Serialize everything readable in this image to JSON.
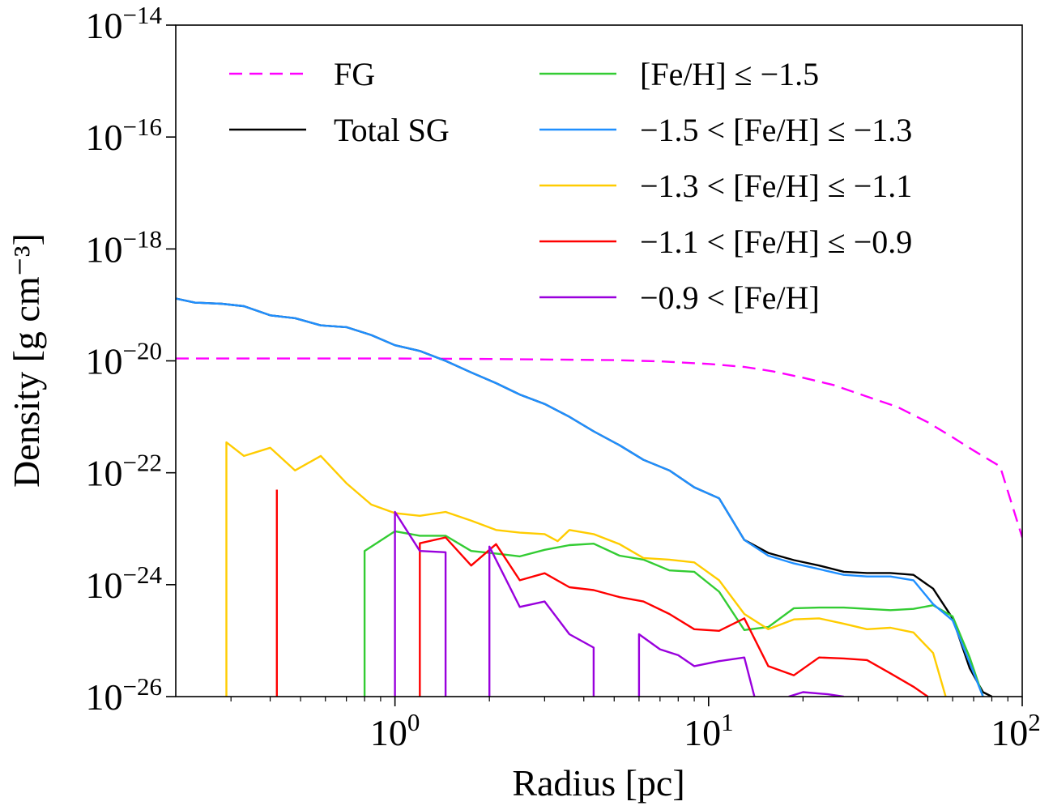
{
  "chart_data": {
    "type": "line",
    "xscale": "log",
    "yscale": "log",
    "xlim": [
      0.2,
      100
    ],
    "ylim": [
      1e-26,
      1e-14
    ],
    "xlabel": "Radius [pc]",
    "ylabel": "Density [g cm⁻³]",
    "xticks": [
      {
        "value": 1,
        "base": "10",
        "exp": "0"
      },
      {
        "value": 10,
        "base": "10",
        "exp": "1"
      },
      {
        "value": 100,
        "base": "10",
        "exp": "2"
      }
    ],
    "yticks": [
      {
        "value": 1e-14,
        "base": "10",
        "exp": "−14"
      },
      {
        "value": 1e-16,
        "base": "10",
        "exp": "−16"
      },
      {
        "value": 1e-18,
        "base": "10",
        "exp": "−18"
      },
      {
        "value": 1e-20,
        "base": "10",
        "exp": "−20"
      },
      {
        "value": 1e-22,
        "base": "10",
        "exp": "−22"
      },
      {
        "value": 1e-24,
        "base": "10",
        "exp": "−24"
      },
      {
        "value": 1e-26,
        "base": "10",
        "exp": "−26"
      }
    ],
    "grid": false,
    "legend_position": "top",
    "series": [
      {
        "name": "FG",
        "color": "#ff00ff",
        "dashed": true,
        "points": [
          [
            0.2,
            1.1e-20
          ],
          [
            0.5,
            1.1e-20
          ],
          [
            1,
            1.1e-20
          ],
          [
            2,
            1.08e-20
          ],
          [
            3,
            1.06e-20
          ],
          [
            5,
            1.03e-20
          ],
          [
            7,
            9.8e-21
          ],
          [
            10,
            8.8e-21
          ],
          [
            13,
            7.8e-21
          ],
          [
            16,
            6.5e-21
          ],
          [
            20,
            5e-21
          ],
          [
            25,
            3.7e-21
          ],
          [
            30,
            2.6e-21
          ],
          [
            40,
            1.5e-21
          ],
          [
            50,
            8e-22
          ],
          [
            60,
            4.3e-22
          ],
          [
            70,
            2.5e-22
          ],
          [
            85,
            1.3e-22
          ],
          [
            100,
            7e-24
          ]
        ]
      },
      {
        "name": "Total SG",
        "color": "#000000",
        "dashed": false,
        "points": [
          [
            0.2,
            1.3e-19
          ],
          [
            0.23,
            1.1e-19
          ],
          [
            0.28,
            1.05e-19
          ],
          [
            0.33,
            9.5e-20
          ],
          [
            0.4,
            6.5e-20
          ],
          [
            0.48,
            5.8e-20
          ],
          [
            0.58,
            4.3e-20
          ],
          [
            0.7,
            4e-20
          ],
          [
            0.84,
            2.9e-20
          ],
          [
            1,
            1.9e-20
          ],
          [
            1.2,
            1.5e-20
          ],
          [
            1.45,
            1e-20
          ],
          [
            1.75,
            6.2e-21
          ],
          [
            2.1,
            4e-21
          ],
          [
            2.5,
            2.5e-21
          ],
          [
            3,
            1.7e-21
          ],
          [
            3.6,
            1e-21
          ],
          [
            4.3,
            5.5e-22
          ],
          [
            5.2,
            3.1e-22
          ],
          [
            6.2,
            1.7e-22
          ],
          [
            7.5,
            1.1e-22
          ],
          [
            9,
            5.5e-23
          ],
          [
            10.8,
            3.5e-23
          ],
          [
            13,
            6.3e-24
          ],
          [
            15.5,
            3.7e-24
          ],
          [
            18.7,
            2.75e-24
          ],
          [
            22.5,
            2.2e-24
          ],
          [
            27,
            1.7e-24
          ],
          [
            32,
            1.62e-24
          ],
          [
            38,
            1.62e-24
          ],
          [
            45,
            1.5e-24
          ],
          [
            52,
            8.5e-25
          ],
          [
            60,
            2.5e-25
          ],
          [
            68,
            3.2e-26
          ],
          [
            75,
            1.2e-26
          ],
          [
            80,
            1e-26
          ]
        ]
      },
      {
        "name": "[Fe/H] ≤ −1.5",
        "color": "#33cc33",
        "dashed": false,
        "points": [
          [
            0.8,
            1e-26
          ],
          [
            0.8,
            4e-24
          ],
          [
            1,
            9e-24
          ],
          [
            1.2,
            7.5e-24
          ],
          [
            1.45,
            7.5e-24
          ],
          [
            1.75,
            4e-24
          ],
          [
            2.1,
            3.6e-24
          ],
          [
            2.5,
            3.2e-24
          ],
          [
            3,
            4.2e-24
          ],
          [
            3.6,
            5.1e-24
          ],
          [
            4.3,
            5.4e-24
          ],
          [
            5.2,
            3.3e-24
          ],
          [
            6.2,
            2.8e-24
          ],
          [
            7.5,
            1.8e-24
          ],
          [
            9,
            1.7e-24
          ],
          [
            10.8,
            7.5e-25
          ],
          [
            13,
            1.55e-25
          ],
          [
            15.5,
            1.75e-25
          ],
          [
            18.7,
            3.8e-25
          ],
          [
            22.5,
            3.9e-25
          ],
          [
            27,
            3.9e-25
          ],
          [
            32,
            3.7e-25
          ],
          [
            38,
            3.5e-25
          ],
          [
            45,
            3.7e-25
          ],
          [
            52,
            4.3e-25
          ],
          [
            60,
            2.7e-25
          ],
          [
            68,
            5e-26
          ],
          [
            75,
            1e-26
          ]
        ]
      },
      {
        "name": "−1.5 < [Fe/H] ≤ −1.3",
        "color": "#1f8fff",
        "dashed": false,
        "points": [
          [
            0.2,
            1.3e-19
          ],
          [
            0.23,
            1.1e-19
          ],
          [
            0.28,
            1.05e-19
          ],
          [
            0.33,
            9.5e-20
          ],
          [
            0.4,
            6.5e-20
          ],
          [
            0.48,
            5.8e-20
          ],
          [
            0.58,
            4.3e-20
          ],
          [
            0.7,
            4e-20
          ],
          [
            0.84,
            2.9e-20
          ],
          [
            1,
            1.9e-20
          ],
          [
            1.2,
            1.5e-20
          ],
          [
            1.45,
            1e-20
          ],
          [
            1.75,
            6.2e-21
          ],
          [
            2.1,
            4e-21
          ],
          [
            2.5,
            2.5e-21
          ],
          [
            3,
            1.7e-21
          ],
          [
            3.6,
            1e-21
          ],
          [
            4.3,
            5.5e-22
          ],
          [
            5.2,
            3.1e-22
          ],
          [
            6.2,
            1.7e-22
          ],
          [
            7.5,
            1.1e-22
          ],
          [
            9,
            5.5e-23
          ],
          [
            10.8,
            3.5e-23
          ],
          [
            13,
            6.3e-24
          ],
          [
            15.5,
            3.3e-24
          ],
          [
            18.7,
            2.4e-24
          ],
          [
            22.5,
            1.9e-24
          ],
          [
            27,
            1.5e-24
          ],
          [
            32,
            1.4e-24
          ],
          [
            38,
            1.4e-24
          ],
          [
            45,
            1.2e-24
          ],
          [
            52,
            4.5e-25
          ],
          [
            60,
            2.3e-25
          ],
          [
            68,
            4e-26
          ],
          [
            75,
            1e-26
          ]
        ]
      },
      {
        "name": "−1.3 < [Fe/H] ≤ −1.1",
        "color": "#ffcc00",
        "dashed": false,
        "points": [
          [
            0.29,
            1e-26
          ],
          [
            0.29,
            3.5e-22
          ],
          [
            0.33,
            2e-22
          ],
          [
            0.4,
            2.8e-22
          ],
          [
            0.48,
            1.1e-22
          ],
          [
            0.58,
            2e-22
          ],
          [
            0.7,
            6.5e-23
          ],
          [
            0.84,
            2.7e-23
          ],
          [
            1,
            1.9e-23
          ],
          [
            1.2,
            1.7e-23
          ],
          [
            1.45,
            2e-23
          ],
          [
            1.75,
            1.4e-23
          ],
          [
            2.1,
            9.5e-24
          ],
          [
            2.5,
            8.5e-24
          ],
          [
            3,
            8e-24
          ],
          [
            3.3,
            6e-24
          ],
          [
            3.6,
            9.5e-24
          ],
          [
            4.3,
            8e-24
          ],
          [
            5.2,
            5.3e-24
          ],
          [
            6.2,
            3e-24
          ],
          [
            7.5,
            2.8e-24
          ],
          [
            9,
            2.5e-24
          ],
          [
            10.8,
            1.2e-24
          ],
          [
            13,
            3e-25
          ],
          [
            15.5,
            1.6e-25
          ],
          [
            18.7,
            2.4e-25
          ],
          [
            22.5,
            2.5e-25
          ],
          [
            27,
            2e-25
          ],
          [
            32,
            1.6e-25
          ],
          [
            38,
            1.7e-25
          ],
          [
            45,
            1.4e-25
          ],
          [
            52,
            6e-26
          ],
          [
            57,
            1e-26
          ]
        ]
      },
      {
        "name": "−1.1 < [Fe/H] ≤ −0.9",
        "color": "#ff0000",
        "dashed": false,
        "segments": [
          [
            [
              0.42,
              1e-26
            ],
            [
              0.42,
              5e-23
            ]
          ],
          [
            [
              1.2,
              1e-26
            ],
            [
              1.2,
              5.5e-24
            ],
            [
              1.45,
              7e-24
            ],
            [
              1.75,
              2.2e-24
            ],
            [
              2.1,
              5.3e-24
            ],
            [
              2.5,
              1.2e-24
            ],
            [
              3,
              1.6e-24
            ],
            [
              3.6,
              9e-25
            ],
            [
              4.3,
              8e-25
            ],
            [
              5.2,
              6e-25
            ],
            [
              6.2,
              5e-25
            ],
            [
              7.5,
              3e-25
            ],
            [
              9,
              1.6e-25
            ],
            [
              10.8,
              1.5e-25
            ],
            [
              13,
              2.5e-25
            ],
            [
              15.5,
              3.5e-26
            ],
            [
              18.7,
              2.4e-26
            ],
            [
              22.5,
              5e-26
            ],
            [
              27,
              4.8e-26
            ],
            [
              32,
              4.5e-26
            ],
            [
              38,
              2.6e-26
            ],
            [
              45,
              1.5e-26
            ],
            [
              50,
              1e-26
            ]
          ]
        ]
      },
      {
        "name": "−0.9 < [Fe/H]",
        "color": "#9900dd",
        "dashed": false,
        "segments": [
          [
            [
              1,
              1e-26
            ],
            [
              1,
              2e-23
            ],
            [
              1.2,
              4e-24
            ],
            [
              1.45,
              3.8e-24
            ],
            [
              1.45,
              1e-26
            ]
          ],
          [
            [
              2,
              1e-26
            ],
            [
              2,
              4.8e-24
            ],
            [
              2.5,
              4e-25
            ],
            [
              3,
              5e-25
            ],
            [
              3.6,
              1.3e-25
            ],
            [
              4.3,
              7.5e-26
            ],
            [
              4.3,
              1e-26
            ]
          ],
          [
            [
              6,
              1e-26
            ],
            [
              6,
              1.3e-25
            ],
            [
              7,
              7e-26
            ],
            [
              8,
              5.5e-26
            ],
            [
              9,
              3.5e-26
            ],
            [
              10.8,
              4.3e-26
            ],
            [
              13,
              5e-26
            ],
            [
              14,
              1e-26
            ]
          ],
          [
            [
              18,
              1e-26
            ],
            [
              20,
              1.2e-26
            ],
            [
              24,
              1.1e-26
            ],
            [
              27,
              1e-26
            ]
          ]
        ]
      }
    ]
  },
  "legend": {
    "left": [
      {
        "label": "FG",
        "color": "#ff00ff",
        "dashed": true
      },
      {
        "label": "Total SG",
        "color": "#000000",
        "dashed": false
      }
    ],
    "right": [
      {
        "label": "[Fe/H] ≤ −1.5",
        "color": "#33cc33",
        "dashed": false
      },
      {
        "label": "−1.5 < [Fe/H] ≤ −1.3",
        "color": "#1f8fff",
        "dashed": false
      },
      {
        "label": "−1.3 < [Fe/H] ≤ −1.1",
        "color": "#ffcc00",
        "dashed": false
      },
      {
        "label": "−1.1 < [Fe/H] ≤ −0.9",
        "color": "#ff0000",
        "dashed": false
      },
      {
        "label": "−0.9 < [Fe/H]",
        "color": "#9900dd",
        "dashed": false
      }
    ]
  }
}
